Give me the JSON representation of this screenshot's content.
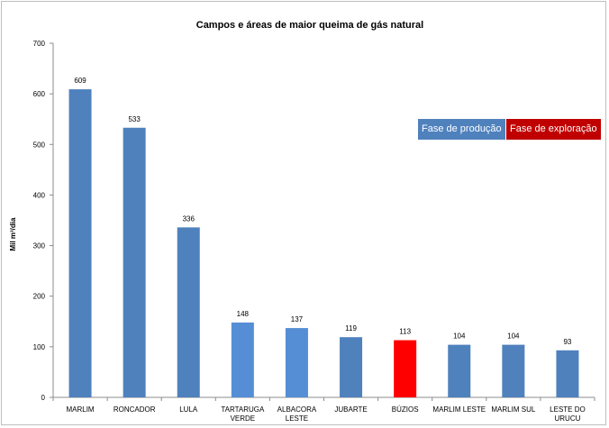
{
  "chart_data": {
    "type": "bar",
    "title": "Campos e áreas de maior queima de gás natural",
    "ylabel": "Mil m³/dia",
    "xlabel": "",
    "ylim": [
      0,
      700
    ],
    "yticks": [
      0,
      100,
      200,
      300,
      400,
      500,
      600,
      700
    ],
    "grid": false,
    "categories": [
      [
        "MARLIM"
      ],
      [
        "RONCADOR"
      ],
      [
        "LULA"
      ],
      [
        "TARTARUGA",
        "VERDE"
      ],
      [
        "ALBACORA",
        "LESTE"
      ],
      [
        "JUBARTE"
      ],
      [
        "BÚZIOS"
      ],
      [
        "MARLIM LESTE"
      ],
      [
        "MARLIM SUL"
      ],
      [
        "LESTE DO",
        "URUCU"
      ]
    ],
    "values": [
      609,
      533,
      336,
      148,
      137,
      119,
      113,
      104,
      104,
      93
    ],
    "bar_colors": [
      "#4f81bd",
      "#4f81bd",
      "#4f81bd",
      "#558ed5",
      "#558ed5",
      "#4f81bd",
      "#ff0000",
      "#4f81bd",
      "#4f81bd",
      "#4f81bd"
    ],
    "legend": {
      "placement": "right",
      "items": [
        {
          "label": "Fase de produção",
          "color": "#4f81bd"
        },
        {
          "label": "Fase de exploração",
          "color": "#c00000"
        }
      ]
    }
  }
}
